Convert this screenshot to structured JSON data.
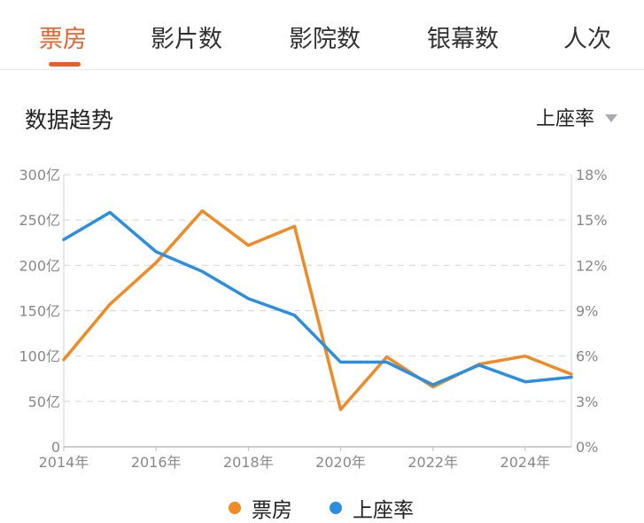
{
  "tabs": [
    {
      "label": "票房",
      "active": true
    },
    {
      "label": "影片数",
      "active": false
    },
    {
      "label": "影院数",
      "active": false
    },
    {
      "label": "银幕数",
      "active": false
    },
    {
      "label": "人次",
      "active": false
    }
  ],
  "section": {
    "title": "数据趋势",
    "selector_value": "上座率"
  },
  "colors": {
    "accent": "#e8602c",
    "box_office": "#f08a24",
    "occupancy": "#2a8fe0"
  },
  "chart_data": {
    "type": "line",
    "x": [
      2014,
      2015,
      2016,
      2017,
      2018,
      2019,
      2020,
      2021,
      2022,
      2023,
      2024,
      2025
    ],
    "x_tick_labels": [
      "2014年",
      "2016年",
      "2018年",
      "2020年",
      "2022年",
      "2024年"
    ],
    "left_axis": {
      "ylim": [
        0,
        300
      ],
      "tick_labels": [
        "0",
        "50亿",
        "100亿",
        "150亿",
        "200亿",
        "250亿",
        "300亿"
      ]
    },
    "right_axis": {
      "ylim": [
        0,
        18
      ],
      "tick_labels": [
        "0%",
        "3%",
        "6%",
        "9%",
        "12%",
        "15%",
        "18%"
      ]
    },
    "series": [
      {
        "name": "票房",
        "axis": "left",
        "color": "#f08a24",
        "values": [
          96,
          157,
          203,
          260,
          222,
          243,
          41,
          99,
          66,
          91,
          100,
          80
        ]
      },
      {
        "name": "上座率",
        "axis": "right",
        "color": "#2a8fe0",
        "values": [
          13.7,
          15.5,
          12.9,
          11.6,
          9.8,
          8.7,
          5.6,
          5.6,
          4.1,
          5.4,
          4.3,
          4.6
        ]
      }
    ],
    "grid": true,
    "legend": "bottom-center"
  }
}
